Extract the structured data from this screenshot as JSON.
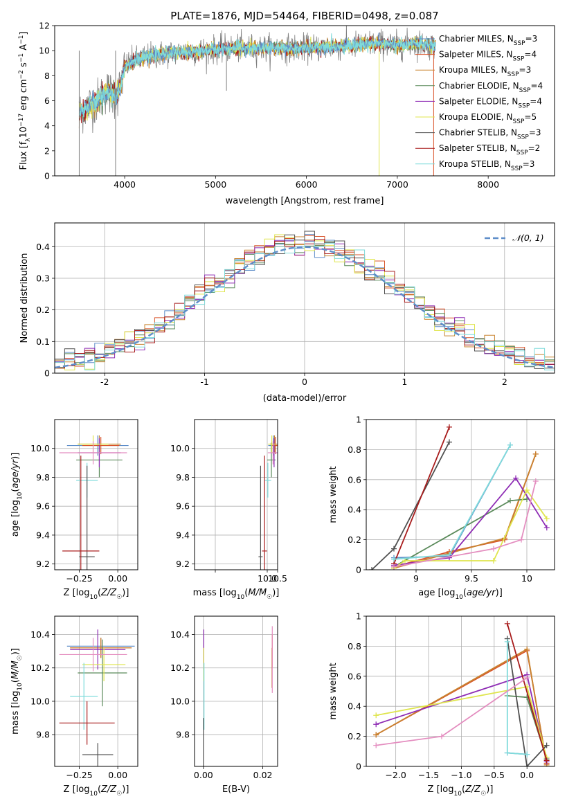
{
  "title": "PLATE=1876, MJD=54464, FIBERID=0498, z=0.087",
  "legend": [
    {
      "name": "Chabrier MILES, N_SSP=3",
      "label": "Chabrier MILES, N",
      "sub": "SSP",
      "suffix": "=3",
      "color": "#5f8ec9"
    },
    {
      "name": "Salpeter MILES, N_SSP=4",
      "label": "Salpeter MILES, N",
      "sub": "SSP",
      "suffix": "=4",
      "color": "#d9542b"
    },
    {
      "name": "Kroupa MILES, N_SSP=3",
      "label": "Kroupa MILES, N",
      "sub": "SSP",
      "suffix": "=3",
      "color": "#c8832f"
    },
    {
      "name": "Chabrier ELODIE, N_SSP=4",
      "label": "Chabrier ELODIE, N",
      "sub": "SSP",
      "suffix": "=4",
      "color": "#5a8a5a"
    },
    {
      "name": "Salpeter ELODIE, N_SSP=4",
      "label": "Salpeter ELODIE, N",
      "sub": "SSP",
      "suffix": "=4",
      "color": "#8e2cb4"
    },
    {
      "name": "Kroupa ELODIE, N_SSP=5",
      "label": "Kroupa ELODIE, N",
      "sub": "SSP",
      "suffix": "=5",
      "color": "#dfe54d"
    },
    {
      "name": "Chabrier STELIB, N_SSP=3",
      "label": "Chabrier STELIB, N",
      "sub": "SSP",
      "suffix": "=3",
      "color": "#505050"
    },
    {
      "name": "Salpeter STELIB, N_SSP=2",
      "label": "Salpeter STELIB, N",
      "sub": "SSP",
      "suffix": "=2",
      "color": "#a81c1c"
    },
    {
      "name": "Kroupa STELIB, N_SSP=3",
      "label": "Kroupa STELIB, N",
      "sub": "SSP",
      "suffix": "=3",
      "color": "#7fdbdb"
    }
  ],
  "chart_data": [
    {
      "type": "line",
      "title": "PLATE=1876, MJD=54464, FIBERID=0498, z=0.087",
      "xlabel": "wavelength [Angstrom, rest frame]",
      "ylabel": "Flux [f_λ10^-17 erg cm^-2 s^-1 A^-1]",
      "xlim": [
        3230,
        8730
      ],
      "ylim": [
        0,
        12
      ],
      "xticks": [
        4000,
        5000,
        6000,
        7000,
        8000
      ],
      "yticks": [
        0,
        2,
        4,
        6,
        8,
        10,
        12
      ],
      "grid": false,
      "legend_position": "right",
      "data_color": "#808080",
      "spectrum_anchors": {
        "x": [
          3500,
          3600,
          3700,
          3800,
          3900,
          3950,
          4000,
          4100,
          4300,
          4500,
          4700,
          5000,
          5200,
          5500,
          6000,
          6500,
          6800,
          7000,
          7200,
          7400
        ],
        "y": [
          5.0,
          5.6,
          6.0,
          6.8,
          6.3,
          7.0,
          8.7,
          9.2,
          9.6,
          9.8,
          9.9,
          10.1,
          10.2,
          10.2,
          10.2,
          10.4,
          10.6,
          10.4,
          10.6,
          10.4
        ]
      },
      "dips": [
        {
          "x": 3500,
          "y": 0
        },
        {
          "x": 3900,
          "y": 0
        },
        {
          "x": 5120,
          "y": 6.8
        },
        {
          "x": 6800,
          "y": 0
        },
        {
          "x": 7400,
          "y": 0
        }
      ]
    },
    {
      "type": "line",
      "xlabel": "(data-model)/error",
      "ylabel": "Normed distribution",
      "xlim": [
        -2.5,
        2.5
      ],
      "ylim": [
        0,
        0.475
      ],
      "xticks": [
        -2,
        -1,
        0,
        1,
        2
      ],
      "yticks": [
        0.0,
        0.1,
        0.2,
        0.3,
        0.4
      ],
      "grid": true,
      "legend_position": "upper right",
      "series": [
        {
          "name": "𝒩(0, 1)",
          "function": "normal_pdf",
          "mean": 0,
          "sigma": 1,
          "color": "#5f8ec9",
          "style": "dashed"
        }
      ],
      "histogram_bin_width": 0.1
    },
    {
      "type": "scatter",
      "xlabel": "Z [log10(Z/Z☉)]",
      "ylabel": "age [log10(age/yr)]",
      "xlim": [
        -0.41,
        0.13
      ],
      "ylim": [
        9.16,
        10.2
      ],
      "xticks": [
        -0.25,
        0.0
      ],
      "xticklabels": [
        "−0.25",
        "0.00"
      ],
      "yticks": [
        9.2,
        9.4,
        9.6,
        9.8,
        10.0
      ],
      "yticklabels": [
        "9.2",
        "9.4",
        "9.6",
        "9.8",
        "10.0"
      ],
      "grid": true,
      "errorbars": [
        {
          "color": "#5f8ec9",
          "x": -0.13,
          "xerr": 0.2,
          "y": 10.02,
          "yerr": 0.07
        },
        {
          "color": "#d9542b",
          "x": -0.11,
          "xerr": 0.12,
          "y": 10.02,
          "yerr": 0.06
        },
        {
          "color": "#c8832f",
          "x": -0.12,
          "xerr": 0.14,
          "y": 10.03,
          "yerr": 0.06
        },
        {
          "color": "#5a8a5a",
          "x": -0.12,
          "xerr": 0.15,
          "y": 9.92,
          "yerr": 0.12
        },
        {
          "color": "#8e2cb4",
          "x": -0.12,
          "xerr": 0.14,
          "y": 9.97,
          "yerr": 0.1
        },
        {
          "color": "#dfe54d",
          "x": -0.16,
          "xerr": 0.1,
          "y": 10.03,
          "yerr": 0.06
        },
        {
          "color": "#7fdbdb",
          "x": -0.2,
          "xerr": 0.07,
          "y": 9.78,
          "yerr": 0.12
        },
        {
          "color": "#505050",
          "x": -0.2,
          "xerr": 0.05,
          "y": 9.25,
          "yerr": 0.63
        },
        {
          "color": "#a81c1c",
          "x": -0.24,
          "xerr": 0.12,
          "y": 9.29,
          "yerr": 0.66
        },
        {
          "color": "#e48ec0",
          "x": -0.16,
          "xerr": 0.22,
          "y": 9.97,
          "yerr": 0.08
        }
      ]
    },
    {
      "type": "scatter",
      "xlabel": "mass [log10(M/M☉)]",
      "ylabel": "",
      "xlim": [
        6.5,
        10.5
      ],
      "ylim": [
        9.16,
        10.2
      ],
      "xticks": [
        7.5,
        10.0,
        10.5
      ],
      "xticklabels": [
        "",
        "10.0",
        "10.5"
      ],
      "yticks": [
        9.2,
        9.4,
        9.6,
        9.8,
        10.0
      ],
      "yticklabels": [
        "9.2",
        "9.4",
        "9.6",
        "9.8",
        "10.0"
      ],
      "grid": true,
      "errorbars": [
        {
          "color": "#5f8ec9",
          "x": 10.3,
          "xerr": 0.25,
          "y": 10.02,
          "yerr": 0.07
        },
        {
          "color": "#d9542b",
          "x": 10.4,
          "xerr": 0.2,
          "y": 10.02,
          "yerr": 0.06
        },
        {
          "color": "#c8832f",
          "x": 10.35,
          "xerr": 0.22,
          "y": 10.03,
          "yerr": 0.06
        },
        {
          "color": "#5a8a5a",
          "x": 10.2,
          "xerr": 0.2,
          "y": 9.92,
          "yerr": 0.12
        },
        {
          "color": "#8e2cb4",
          "x": 10.33,
          "xerr": 0.15,
          "y": 9.97,
          "yerr": 0.1
        },
        {
          "color": "#dfe54d",
          "x": 10.22,
          "xerr": 0.18,
          "y": 10.03,
          "yerr": 0.06
        },
        {
          "color": "#7fdbdb",
          "x": 10.03,
          "xerr": 0.16,
          "y": 9.78,
          "yerr": 0.12
        },
        {
          "color": "#505050",
          "x": 9.68,
          "xerr": 0.1,
          "y": 9.25,
          "yerr": 0.63
        },
        {
          "color": "#a81c1c",
          "x": 9.87,
          "xerr": 0.12,
          "y": 9.29,
          "yerr": 0.66
        },
        {
          "color": "#e48ec0",
          "x": 10.28,
          "xerr": 0.25,
          "y": 9.97,
          "yerr": 0.08
        }
      ]
    },
    {
      "type": "line",
      "xlabel": "age [log10(age/yr)]",
      "ylabel": "mass weight",
      "xlim": [
        8.55,
        10.25
      ],
      "ylim": [
        0,
        1
      ],
      "xticks": [
        9.0,
        9.5,
        10.0
      ],
      "yticks": [
        0.0,
        0.2,
        0.4,
        0.6,
        0.8,
        1.0
      ],
      "grid": true,
      "series": [
        {
          "name": "Chabrier MILES",
          "color": "#5f8ec9",
          "x": [
            8.8,
            9.3,
            9.85
          ],
          "y": [
            0.08,
            0.09,
            0.83
          ]
        },
        {
          "name": "Salpeter MILES",
          "color": "#d9542b",
          "x": [
            8.8,
            9.3,
            9.8,
            10.08
          ],
          "y": [
            0.02,
            0.12,
            0.2,
            0.77
          ]
        },
        {
          "name": "Kroupa MILES",
          "color": "#c8832f",
          "x": [
            8.8,
            9.3,
            9.8,
            10.08
          ],
          "y": [
            0.01,
            0.11,
            0.21,
            0.77
          ]
        },
        {
          "name": "Chabrier ELODIE",
          "color": "#5a8a5a",
          "x": [
            8.8,
            9.85,
            10.0
          ],
          "y": [
            0.02,
            0.46,
            0.47
          ]
        },
        {
          "name": "Salpeter ELODIE",
          "color": "#8e2cb4",
          "x": [
            8.8,
            9.3,
            9.9,
            10.18
          ],
          "y": [
            0.03,
            0.08,
            0.61,
            0.28
          ]
        },
        {
          "name": "Kroupa ELODIE",
          "color": "#dfe54d",
          "x": [
            8.8,
            8.9,
            9.7,
            10.0,
            10.18
          ],
          "y": [
            0.01,
            0.06,
            0.06,
            0.53,
            0.34
          ]
        },
        {
          "name": "Chabrier STELIB",
          "color": "#505050",
          "x": [
            8.6,
            8.8,
            9.3
          ],
          "y": [
            0.0,
            0.14,
            0.85
          ]
        },
        {
          "name": "Salpeter STELIB",
          "color": "#a81c1c",
          "x": [
            8.8,
            9.3
          ],
          "y": [
            0.04,
            0.95
          ]
        },
        {
          "name": "Kroupa STELIB",
          "color": "#7fdbdb",
          "x": [
            8.8,
            9.3,
            9.85
          ],
          "y": [
            0.07,
            0.1,
            0.83
          ]
        },
        {
          "name": "pink",
          "color": "#e48ec0",
          "x": [
            8.8,
            9.7,
            9.95,
            10.08
          ],
          "y": [
            0.02,
            0.14,
            0.2,
            0.59
          ]
        }
      ]
    },
    {
      "type": "scatter",
      "xlabel": "Z [log10(Z/Z☉)]",
      "ylabel": "mass [log10(M/M☉)]",
      "xlim": [
        -0.41,
        0.13
      ],
      "ylim": [
        9.61,
        10.51
      ],
      "xticks": [
        -0.25,
        0.0
      ],
      "xticklabels": [
        "−0.25",
        "0.00"
      ],
      "yticks": [
        9.8,
        10.0,
        10.2,
        10.4
      ],
      "yticklabels": [
        "9.8",
        "10.0",
        "10.2",
        "10.4"
      ],
      "grid": true,
      "errorbars": [
        {
          "color": "#5f8ec9",
          "x": -0.11,
          "xerr": 0.22,
          "y": 10.33,
          "yerr": 0.05
        },
        {
          "color": "#d9542b",
          "x": -0.11,
          "xerr": 0.2,
          "y": 10.32,
          "yerr": 0.06
        },
        {
          "color": "#c8832f",
          "x": -0.11,
          "xerr": 0.2,
          "y": 10.32,
          "yerr": 0.06
        },
        {
          "color": "#5a8a5a",
          "x": -0.1,
          "xerr": 0.16,
          "y": 10.17,
          "yerr": 0.2
        },
        {
          "color": "#8e2cb4",
          "x": -0.13,
          "xerr": 0.18,
          "y": 10.31,
          "yerr": 0.12
        },
        {
          "color": "#dfe54d",
          "x": -0.09,
          "xerr": 0.14,
          "y": 10.22,
          "yerr": 0.1
        },
        {
          "color": "#7fdbdb",
          "x": -0.22,
          "xerr": 0.09,
          "y": 10.03,
          "yerr": 0.2
        },
        {
          "color": "#505050",
          "x": -0.13,
          "xerr": 0.1,
          "y": 9.68,
          "yerr": 0.07
        },
        {
          "color": "#a81c1c",
          "x": -0.2,
          "xerr": 0.18,
          "y": 9.87,
          "yerr": 0.13
        },
        {
          "color": "#e48ec0",
          "x": -0.16,
          "xerr": 0.22,
          "y": 10.28,
          "yerr": 0.1
        }
      ]
    },
    {
      "type": "scatter",
      "xlabel": "E(B-V)",
      "ylabel": "",
      "xlim": [
        -0.003,
        0.025
      ],
      "ylim": [
        9.61,
        10.51
      ],
      "xticks": [
        0.0,
        0.02
      ],
      "xticklabels": [
        "0.00",
        "0.02"
      ],
      "yticks": [
        9.8,
        10.0,
        10.2,
        10.4
      ],
      "yticklabels": [
        "9.8",
        "10.0",
        "10.2",
        "10.4"
      ],
      "grid": true,
      "errorbars": [
        {
          "color": "#d9542b",
          "x": 0.0232,
          "xerr": 0,
          "y": 10.3,
          "yerr": 0.1
        },
        {
          "color": "#c8832f",
          "x": 0.0231,
          "xerr": 0,
          "y": 10.2,
          "yerr": 0.12
        },
        {
          "color": "#e48ec0",
          "x": 0.0232,
          "xerr": 0,
          "y": 10.25,
          "yerr": 0.2
        },
        {
          "color": "#8e2cb4",
          "x": 0.0001,
          "xerr": 0,
          "y": 10.31,
          "yerr": 0.12
        },
        {
          "color": "#dfe54d",
          "x": 0.0001,
          "xerr": 0,
          "y": 10.22,
          "yerr": 0.1
        },
        {
          "color": "#7fdbdb",
          "x": 0.0002,
          "xerr": 0,
          "y": 10.03,
          "yerr": 0.2
        },
        {
          "color": "#505050",
          "x": 0.0,
          "xerr": 0,
          "y": 9.75,
          "yerr": 0.15
        }
      ]
    },
    {
      "type": "line",
      "xlabel": "Z [log10(Z/Z☉)]",
      "ylabel": "mass weight",
      "xlim": [
        -2.45,
        0.42
      ],
      "ylim": [
        0,
        1
      ],
      "xticks": [
        -2.0,
        -1.5,
        -1.0,
        -0.5,
        0.0
      ],
      "xticklabels": [
        "−2.0",
        "−1.5",
        "−1.0",
        "−0.5",
        "0.0"
      ],
      "yticks": [
        0.0,
        0.2,
        0.4,
        0.6,
        0.8,
        1.0
      ],
      "grid": true,
      "series": [
        {
          "name": "Chabrier MILES",
          "color": "#5f8ec9",
          "x": [
            -0.3,
            0.0
          ],
          "y": [
            0.09,
            0.08
          ]
        },
        {
          "name": "Salpeter MILES",
          "color": "#d9542b",
          "x": [
            -2.3,
            0.0,
            0.3
          ],
          "y": [
            0.21,
            0.77,
            0.02
          ]
        },
        {
          "name": "Kroupa MILES",
          "color": "#c8832f",
          "x": [
            -2.3,
            0.0,
            0.3
          ],
          "y": [
            0.21,
            0.78,
            0.01
          ]
        },
        {
          "name": "Chabrier ELODIE",
          "color": "#5a8a5a",
          "x": [
            -0.3,
            0.0,
            0.3
          ],
          "y": [
            0.47,
            0.46,
            0.05
          ]
        },
        {
          "name": "Salpeter ELODIE",
          "color": "#8e2cb4",
          "x": [
            -2.3,
            0.0,
            0.3
          ],
          "y": [
            0.28,
            0.61,
            0.03
          ]
        },
        {
          "name": "Kroupa ELODIE",
          "color": "#dfe54d",
          "x": [
            -2.3,
            0.0,
            0.3
          ],
          "y": [
            0.34,
            0.53,
            0.06
          ]
        },
        {
          "name": "Chabrier STELIB",
          "color": "#505050",
          "x": [
            -0.3,
            0.0,
            0.3
          ],
          "y": [
            0.85,
            0.0,
            0.14
          ]
        },
        {
          "name": "Salpeter STELIB",
          "color": "#a81c1c",
          "x": [
            -0.3,
            0.3
          ],
          "y": [
            0.95,
            0.04
          ]
        },
        {
          "name": "Kroupa STELIB",
          "color": "#7fdbdb",
          "x": [
            -0.3,
            -0.3,
            0.0
          ],
          "y": [
            0.83,
            0.09,
            0.08
          ]
        },
        {
          "name": "pink",
          "color": "#e48ec0",
          "x": [
            -2.3,
            -1.3,
            0.0
          ],
          "y": [
            0.14,
            0.2,
            0.59
          ]
        }
      ]
    }
  ]
}
